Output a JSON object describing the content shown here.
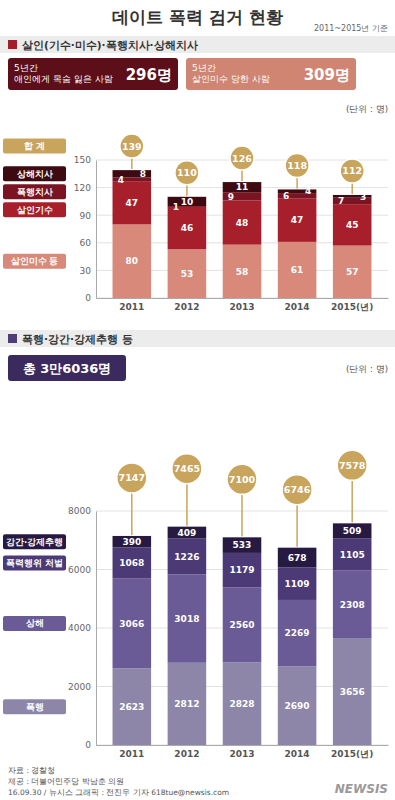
{
  "title": "데이트 폭력 검거 현황",
  "subtitle": "2011~2015년 기준",
  "chart_data": [
    {
      "type": "bar",
      "stacked": true,
      "title": "살인(기수·미수)·폭행치사·상해치사",
      "subtitle": "(단위 : 명)",
      "categories": [
        "2011",
        "2012",
        "2013",
        "2014",
        "2015(년)"
      ],
      "series": [
        {
          "name": "살인미수 등",
          "color": "#d8897a",
          "values": [
            80,
            53,
            58,
            61,
            57
          ]
        },
        {
          "name": "살인기수",
          "color": "#a81f2c",
          "values": [
            47,
            46,
            48,
            47,
            45
          ]
        },
        {
          "name": "폭행치사",
          "color": "#7a1422",
          "values": [
            4,
            1,
            9,
            6,
            7
          ]
        },
        {
          "name": "상해치사",
          "color": "#3e0a12",
          "values": [
            8,
            10,
            11,
            4,
            3
          ]
        }
      ],
      "totals": {
        "label": "합 계",
        "values": [
          139,
          110,
          126,
          118,
          112
        ]
      },
      "annotations": [
        {
          "lines": [
            "5년간",
            "애인에게 목숨 잃은 사람"
          ],
          "value": "296명"
        },
        {
          "lines": [
            "5년간",
            "살인미수 당한 사람"
          ],
          "value": "309명"
        }
      ],
      "ylim": [
        0,
        150
      ],
      "yticks": [
        0,
        30,
        60,
        90,
        120,
        150
      ],
      "grid": true,
      "legend": "left",
      "data_labels": true
    },
    {
      "type": "bar",
      "stacked": true,
      "title": "폭행·강간·강제추행 등",
      "subtitle": "(단위 : 명)",
      "categories": [
        "2011",
        "2012",
        "2013",
        "2014",
        "2015(년)"
      ],
      "series": [
        {
          "name": "폭행",
          "color": "#8d86a8",
          "values": [
            2623,
            2812,
            2828,
            2690,
            3656
          ]
        },
        {
          "name": "상해",
          "color": "#6a5a96",
          "values": [
            3066,
            3018,
            2560,
            2269,
            2308
          ]
        },
        {
          "name": "폭력행위 처벌",
          "color": "#4b3a76",
          "values": [
            1068,
            1226,
            1179,
            1109,
            1105
          ]
        },
        {
          "name": "강간·강제추행",
          "color": "#271a42",
          "values": [
            390,
            409,
            533,
            678,
            509
          ]
        }
      ],
      "totals": {
        "values": [
          7147,
          7465,
          7100,
          6746,
          7578
        ]
      },
      "annotations": [
        {
          "value": "총 3만6036명"
        }
      ],
      "ylim": [
        0,
        8000
      ],
      "yticks": [
        0,
        2000,
        4000,
        6000,
        8000
      ],
      "grid": true,
      "legend": "left",
      "data_labels": true
    }
  ],
  "footer": [
    "자료 : 경찰청",
    "제공 : 더불어민주당 박남춘 의원",
    "16.09.30 / 뉴시스 그래픽 : 전진우 기자 618tue@newsis.com"
  ],
  "credit": "NEWSIS"
}
